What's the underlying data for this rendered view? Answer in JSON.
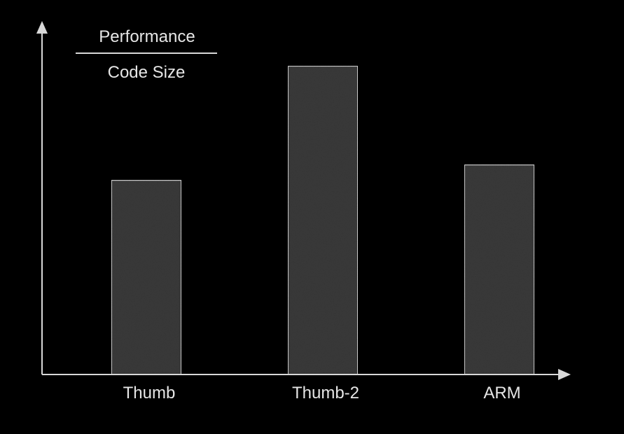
{
  "colors": {
    "background": "#000000",
    "axis": "#d8d8d8",
    "bar_fill": "#3a3a3a",
    "bar_stroke": "#cfcfcf",
    "text": "#e6e6e6"
  },
  "chart_data": {
    "type": "bar",
    "categories": [
      "Thumb",
      "Thumb-2",
      "ARM"
    ],
    "values": [
      0.63,
      1.0,
      0.68
    ],
    "ylim": [
      0,
      1.15
    ],
    "ylabel_numerator": "Performance",
    "ylabel_denominator": "Code Size",
    "xlabel": "",
    "title": "",
    "axis_ticks_visible": false,
    "grid": false,
    "legend": "none"
  }
}
